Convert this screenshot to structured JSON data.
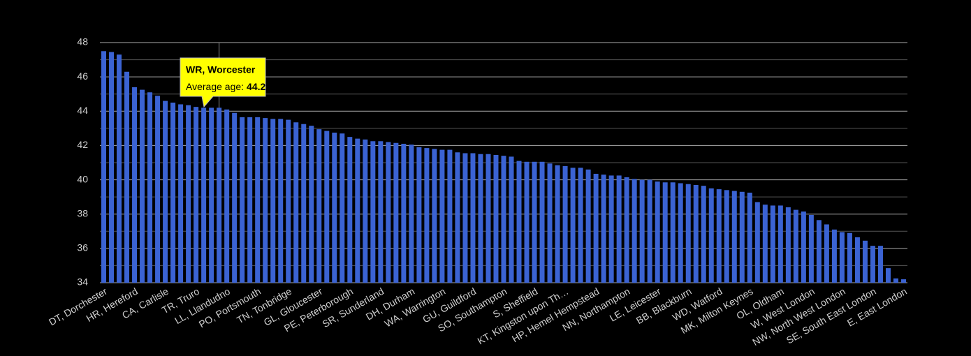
{
  "chart_data": {
    "type": "bar",
    "color": "#3b63d3",
    "categories": [
      "DT, Dorchester",
      null,
      null,
      null,
      "HR, Hereford",
      null,
      null,
      null,
      "CA, Carlisle",
      null,
      null,
      null,
      "TR, Truro",
      null,
      null,
      null,
      "LL, Llandudno",
      null,
      null,
      null,
      "PO, Portsmouth",
      null,
      null,
      null,
      "TN, Tonbridge",
      null,
      null,
      null,
      "GL, Gloucester",
      null,
      null,
      null,
      "PE, Peterborough",
      null,
      null,
      null,
      "SR, Sunderland",
      null,
      null,
      null,
      "DH, Durham",
      null,
      null,
      null,
      "WA, Warrington",
      null,
      null,
      null,
      "GU, Guildford",
      null,
      null,
      null,
      "SO, Southampton",
      null,
      null,
      null,
      "S, Sheffield",
      null,
      null,
      null,
      "KT, Kingston upon Th…",
      null,
      null,
      null,
      "HP, Hemel Hempstead",
      null,
      null,
      null,
      "NN, Northampton",
      null,
      null,
      null,
      "LE, Leicester",
      null,
      null,
      null,
      "BB, Blackburn",
      null,
      null,
      null,
      "WD, Watford",
      null,
      null,
      null,
      "MK, Milton Keynes",
      null,
      null,
      null,
      "OL, Oldham",
      null,
      null,
      null,
      "W, West London",
      null,
      null,
      null,
      "NW, North West London",
      null,
      null,
      null,
      "SE, South East London",
      null,
      null,
      null,
      "E, East London"
    ],
    "values": [
      47.5,
      47.45,
      47.3,
      46.3,
      45.4,
      45.25,
      45.1,
      44.9,
      44.6,
      44.5,
      44.4,
      44.35,
      44.25,
      44.2,
      44.2,
      44.2,
      44.1,
      43.9,
      43.65,
      43.65,
      43.65,
      43.6,
      43.55,
      43.55,
      43.5,
      43.35,
      43.25,
      43.15,
      42.95,
      42.85,
      42.75,
      42.7,
      42.5,
      42.4,
      42.35,
      42.25,
      42.25,
      42.2,
      42.15,
      42.1,
      42.05,
      41.9,
      41.85,
      41.8,
      41.75,
      41.75,
      41.6,
      41.55,
      41.55,
      41.5,
      41.5,
      41.45,
      41.4,
      41.35,
      41.1,
      41.05,
      41.05,
      41.05,
      40.95,
      40.85,
      40.8,
      40.7,
      40.7,
      40.6,
      40.35,
      40.3,
      40.25,
      40.25,
      40.15,
      40.05,
      40.0,
      40.0,
      39.9,
      39.85,
      39.85,
      39.8,
      39.75,
      39.7,
      39.65,
      39.5,
      39.45,
      39.4,
      39.35,
      39.3,
      39.25,
      38.7,
      38.55,
      38.5,
      38.5,
      38.4,
      38.25,
      38.15,
      37.95,
      37.65,
      37.4,
      37.1,
      36.95,
      36.9,
      36.65,
      36.45,
      36.15,
      36.15,
      34.85,
      34.25,
      34.2
    ],
    "ylim": [
      34,
      48
    ],
    "yticks": [
      34,
      36,
      38,
      40,
      42,
      44,
      46,
      48
    ],
    "minor_yticks": [
      35,
      37,
      39,
      41,
      43,
      45,
      47
    ],
    "grid": true,
    "tooltip": {
      "title": "WR, Worcester",
      "label": "Average age:",
      "value": 44.2
    }
  }
}
